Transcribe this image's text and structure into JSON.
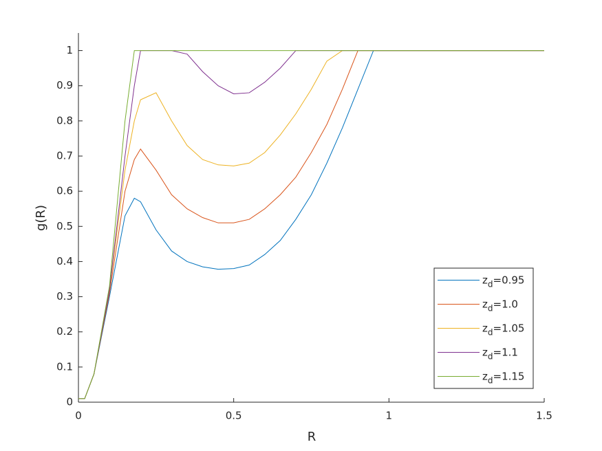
{
  "chart_data": {
    "type": "line",
    "xlabel": "R",
    "ylabel": "g(R)",
    "x": [
      0,
      0.02,
      0.05,
      0.1,
      0.15,
      0.18,
      0.2,
      0.25,
      0.3,
      0.35,
      0.4,
      0.45,
      0.5,
      0.55,
      0.6,
      0.65,
      0.7,
      0.75,
      0.8,
      0.85,
      0.9,
      0.95,
      1,
      1.5
    ],
    "series": [
      {
        "name": "zd=0.95",
        "color": "#0072bd",
        "values": [
          0.01,
          0.01,
          0.08,
          0.3,
          0.53,
          0.58,
          0.57,
          0.49,
          0.43,
          0.4,
          0.385,
          0.378,
          0.38,
          0.39,
          0.42,
          0.46,
          0.52,
          0.59,
          0.68,
          0.78,
          0.89,
          1,
          1,
          1
        ]
      },
      {
        "name": "zd=1.0",
        "color": "#d95319",
        "values": [
          0.01,
          0.01,
          0.08,
          0.31,
          0.6,
          0.69,
          0.72,
          0.66,
          0.59,
          0.55,
          0.525,
          0.51,
          0.51,
          0.52,
          0.55,
          0.59,
          0.64,
          0.71,
          0.79,
          0.89,
          1,
          1,
          1,
          1
        ]
      },
      {
        "name": "zd=1.05",
        "color": "#edb120",
        "values": [
          0.01,
          0.01,
          0.08,
          0.32,
          0.66,
          0.8,
          0.86,
          0.88,
          0.8,
          0.73,
          0.69,
          0.675,
          0.672,
          0.68,
          0.71,
          0.76,
          0.82,
          0.89,
          0.97,
          1,
          1,
          1,
          1,
          1
        ]
      },
      {
        "name": "zd=1.1",
        "color": "#7e2f8e",
        "values": [
          0.01,
          0.01,
          0.08,
          0.32,
          0.7,
          0.9,
          1,
          1,
          1,
          0.99,
          0.94,
          0.9,
          0.877,
          0.88,
          0.91,
          0.95,
          1,
          1,
          1,
          1,
          1,
          1,
          1,
          1
        ]
      },
      {
        "name": "zd=1.15",
        "color": "#77ac30",
        "values": [
          0.01,
          0.01,
          0.08,
          0.33,
          0.8,
          1,
          1,
          1,
          1,
          1,
          1,
          1,
          1,
          1,
          1,
          1,
          1,
          1,
          1,
          1,
          1,
          1,
          1,
          1
        ]
      }
    ],
    "xlim": [
      0,
      1.5
    ],
    "xticks": [
      0,
      0.5,
      1,
      1.5
    ],
    "ylim": [
      0,
      1.05
    ],
    "yticks": [
      0,
      0.1,
      0.2,
      0.3,
      0.4,
      0.5,
      0.6,
      0.7,
      0.8,
      0.9,
      1
    ],
    "legend": "lower-right"
  }
}
